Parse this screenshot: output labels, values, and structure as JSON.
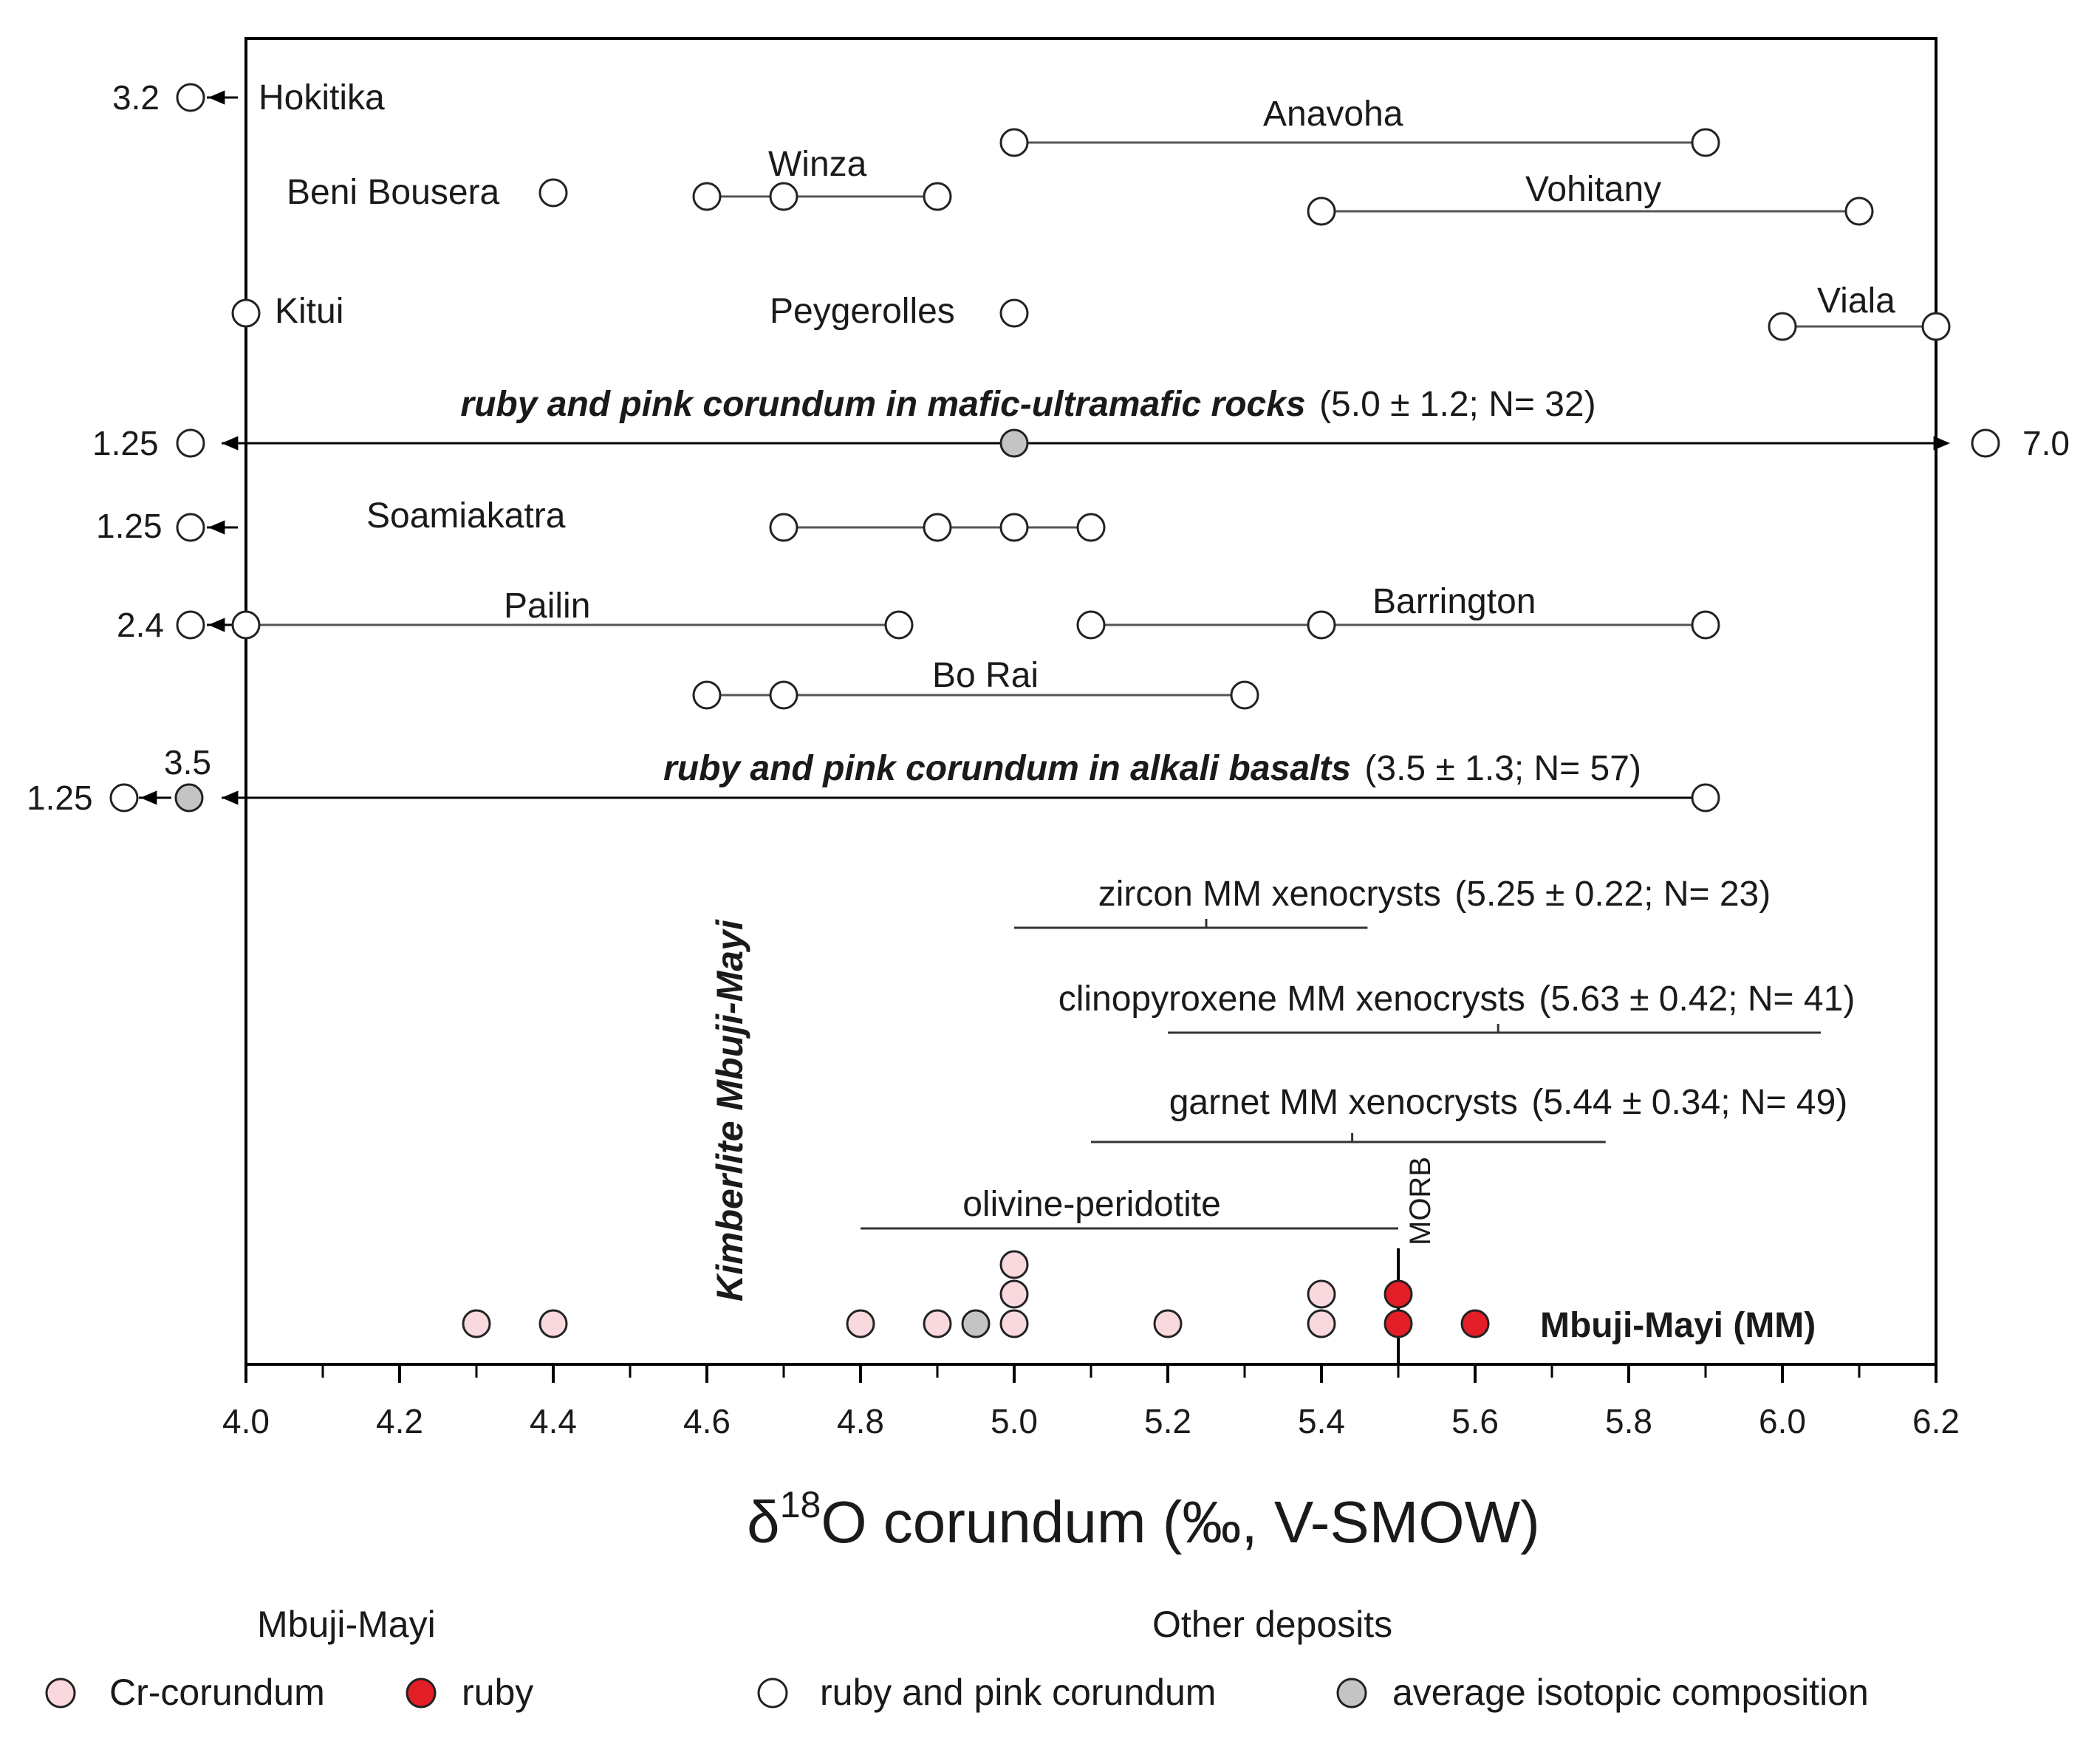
{
  "colors": {
    "cr_corundum": "#f9d9de",
    "ruby": "#e41e26",
    "open": "#ffffff",
    "average": "#c4c4c4",
    "line": "#555555",
    "frame": "#000000"
  },
  "chart_data": {
    "type": "scatter",
    "xlabel": "δ18O corundum (‰, V-SMOW)",
    "xlim": [
      4.0,
      6.2
    ],
    "xticks": [
      "4.0",
      "4.2",
      "4.4",
      "4.6",
      "4.8",
      "5.0",
      "5.2",
      "5.4",
      "5.6",
      "5.8",
      "6.0",
      "6.2"
    ],
    "deposits": [
      {
        "name": "Hokitika",
        "values": [
          3.2
        ],
        "off_scale_label": "3.2"
      },
      {
        "name": "Anavoha",
        "values": [
          5.0,
          5.9
        ]
      },
      {
        "name": "Winza",
        "values": [
          4.6,
          4.7,
          4.9
        ]
      },
      {
        "name": "Beni Bousera",
        "values": [
          4.4
        ]
      },
      {
        "name": "Vohitany",
        "values": [
          5.4,
          6.1
        ]
      },
      {
        "name": "Kitui",
        "values": [
          4.0
        ]
      },
      {
        "name": "Peygerolles",
        "values": [
          5.0
        ]
      },
      {
        "name": "Viala",
        "values": [
          6.0,
          6.2
        ]
      },
      {
        "name": "Soamiakatra",
        "values": [
          4.7,
          4.9,
          5.0,
          5.1
        ],
        "off_scale_label": "1.25"
      },
      {
        "name": "Pailin",
        "values": [
          4.0,
          4.85
        ],
        "off_scale_label": "2.4"
      },
      {
        "name": "Barrington",
        "values": [
          5.1,
          5.4,
          5.9
        ]
      },
      {
        "name": "Bo Rai",
        "values": [
          4.6,
          4.7,
          5.3
        ]
      }
    ],
    "mafic_group": {
      "label": "ruby and pink corundum in mafic-ultramafic rocks",
      "stats": "(5.0 ± 1.2; N= 32)",
      "mean": 5.0,
      "min_label": "1.25",
      "max_label": "7.0"
    },
    "alkali_group": {
      "label": "ruby  and pink corundum in alkali basalts",
      "stats": "(3.5 ± 1.3; N= 57)",
      "mean_label": "3.5",
      "min_label": "1.25",
      "max": 5.9
    },
    "xenocrysts": [
      {
        "label": "zircon MM xenocrysts",
        "stats": "(5.25 ± 0.22; N= 23)",
        "mean": 5.25,
        "min": 5.0,
        "max": 5.46
      },
      {
        "label": "clinopyroxene MM xenocrysts",
        "stats": "(5.63 ± 0.42; N= 41)",
        "mean": 5.63,
        "min": 5.2,
        "max": 6.05
      },
      {
        "label": "garnet MM xenocrysts",
        "stats": "(5.44 ± 0.34; N= 49)",
        "mean": 5.44,
        "min": 5.1,
        "max": 5.77
      }
    ],
    "olivine": {
      "label": "olivine-peridotite",
      "min": 4.8,
      "max": 5.5
    },
    "morb": {
      "label": "MORB",
      "value": 5.5
    },
    "kimberlite_label": "Kimberlite Mbuji-Mayi",
    "mbuji_mayi": {
      "label": "Mbuji-Mayi (MM)",
      "cr_corundum": [
        4.3,
        4.4,
        4.8,
        4.9,
        5.0,
        5.0,
        5.0,
        5.2,
        5.4,
        5.4
      ],
      "ruby": [
        5.5,
        5.5,
        5.6
      ],
      "average": 4.95
    },
    "legend": {
      "mm_title": "Mbuji-Mayi",
      "cr": "Cr-corundum",
      "ruby": "ruby",
      "other_title": "Other deposits",
      "open": "ruby and pink corundum",
      "avg": "average isotopic composition"
    }
  }
}
